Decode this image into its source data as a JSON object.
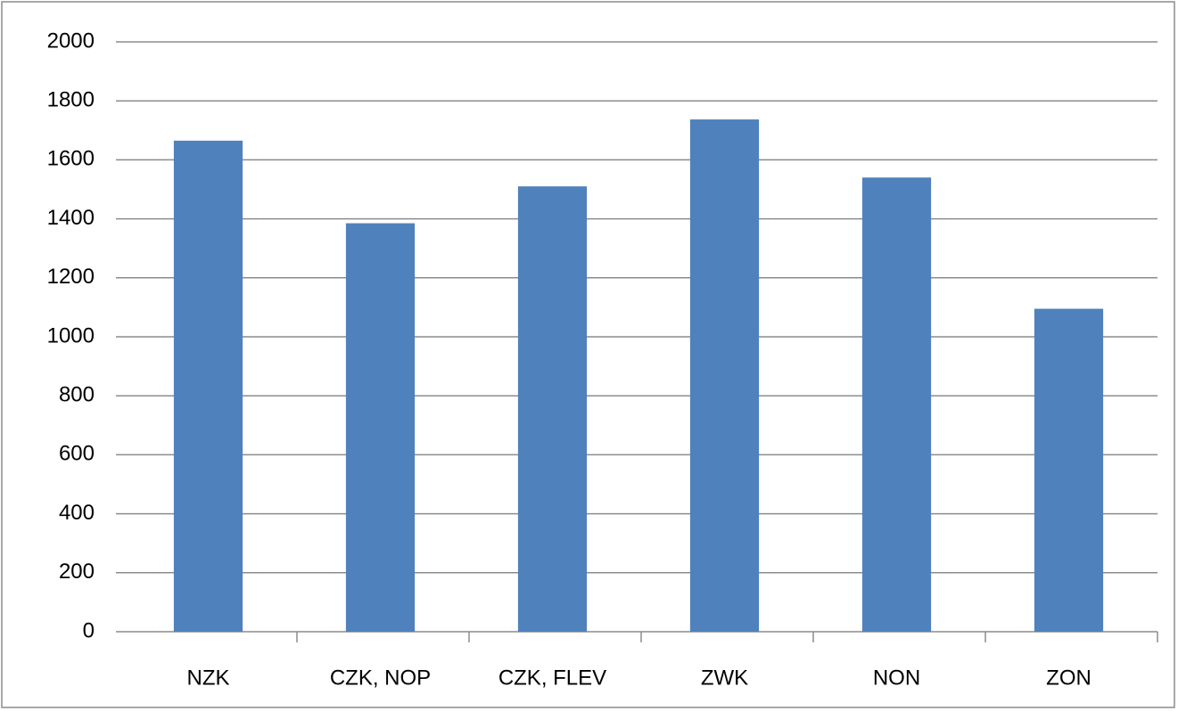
{
  "chart_data": {
    "type": "bar",
    "categories": [
      "NZK",
      "CZK, NOP",
      "CZK, FLEV",
      "ZWK",
      "NON",
      "ZON"
    ],
    "values": [
      1665,
      1385,
      1510,
      1737,
      1540,
      1095
    ],
    "color": "#4f81bd",
    "ylim": [
      0,
      2000
    ],
    "yticks": [
      0,
      200,
      400,
      600,
      800,
      1000,
      1200,
      1400,
      1600,
      1800,
      2000
    ],
    "grid": true
  }
}
